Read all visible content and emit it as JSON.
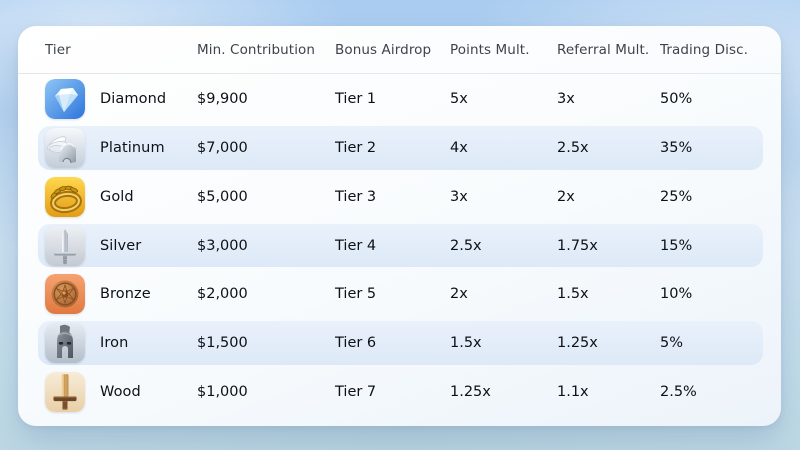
{
  "card": {
    "headers": [
      "Tier",
      "Min. Contribution",
      "Bonus Airdrop",
      "Points Mult.",
      "Referral Mult.",
      "Trading Disc."
    ],
    "rows": [
      {
        "icon": "diamond-icon",
        "tier": "Diamond",
        "min_contribution": "$9,900",
        "bonus_airdrop": "Tier 1",
        "points_mult": "5x",
        "referral_mult": "3x",
        "trading_disc": "50%"
      },
      {
        "icon": "platinum-helmet-icon",
        "tier": "Platinum",
        "min_contribution": "$7,000",
        "bonus_airdrop": "Tier 2",
        "points_mult": "4x",
        "referral_mult": "2.5x",
        "trading_disc": "35%"
      },
      {
        "icon": "gold-wreath-icon",
        "tier": "Gold",
        "min_contribution": "$5,000",
        "bonus_airdrop": "Tier 3",
        "points_mult": "3x",
        "referral_mult": "2x",
        "trading_disc": "25%"
      },
      {
        "icon": "silver-sword-icon",
        "tier": "Silver",
        "min_contribution": "$3,000",
        "bonus_airdrop": "Tier 4",
        "points_mult": "2.5x",
        "referral_mult": "1.75x",
        "trading_disc": "15%"
      },
      {
        "icon": "bronze-shield-icon",
        "tier": "Bronze",
        "min_contribution": "$2,000",
        "bonus_airdrop": "Tier 5",
        "points_mult": "2x",
        "referral_mult": "1.5x",
        "trading_disc": "10%"
      },
      {
        "icon": "iron-helmet-icon",
        "tier": "Iron",
        "min_contribution": "$1,500",
        "bonus_airdrop": "Tier 6",
        "points_mult": "1.5x",
        "referral_mult": "1.25x",
        "trading_disc": "5%"
      },
      {
        "icon": "wood-sword-icon",
        "tier": "Wood",
        "min_contribution": "$1,000",
        "bonus_airdrop": "Tier 7",
        "points_mult": "1.25x",
        "referral_mult": "1.1x",
        "trading_disc": "2.5%"
      }
    ]
  },
  "colors": {
    "sky": "#b5d2ee",
    "card": "#fbfdfe",
    "row_stripe": "#e4eefa",
    "cell_text": "#0e1116",
    "header_text": "#3e434a"
  }
}
